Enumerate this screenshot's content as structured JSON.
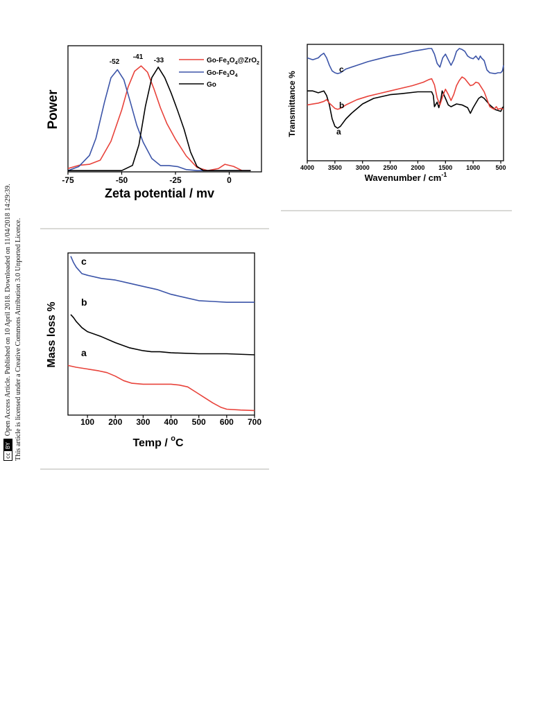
{
  "sidebar": {
    "line1": "Open Access Article. Published on 10 April 2018. Downloaded on 11/04/2018 14:29:39.",
    "line2": "This article is licensed under a Creative Commons Attribution 3.0 Unported Licence.",
    "badge_cc": "cc",
    "badge_by": "BY"
  },
  "colors": {
    "red": "#e8423a",
    "blue": "#3b54a8",
    "black": "#000000"
  },
  "chart_data": [
    {
      "type": "line",
      "xlabel": "Zeta potential / mv",
      "ylabel": "Power",
      "xlim": [
        -75,
        15
      ],
      "xticks": [
        -75,
        -50,
        -25,
        0
      ],
      "tick_labels": [
        "-75",
        "-50",
        "-25",
        "0"
      ],
      "legend_placement": "top-right",
      "peak_labels": [
        "-52",
        "-41",
        "-33"
      ],
      "series": [
        {
          "name": "Go-Fe3O4@ZrO2",
          "legend_text": "Go-Fe",
          "legend_sub1": "3",
          "legend_mid": "O",
          "legend_sub2": "4",
          "legend_mid2": "@ZrO",
          "legend_sub3": "2",
          "color": "#e8423a",
          "peak": -41,
          "x": [
            -75,
            -70,
            -65,
            -60,
            -55,
            -50,
            -47,
            -44,
            -41,
            -38,
            -35,
            -32,
            -29,
            -25,
            -20,
            -15,
            -10,
            -5,
            -2,
            2,
            6,
            10
          ],
          "y": [
            0.02,
            0.05,
            0.06,
            0.1,
            0.28,
            0.58,
            0.8,
            0.95,
            1.0,
            0.94,
            0.78,
            0.6,
            0.45,
            0.3,
            0.14,
            0.03,
            0.0,
            0.02,
            0.06,
            0.04,
            0.0,
            0.0
          ]
        },
        {
          "name": "Go-Fe3O4",
          "legend_text": "Go-Fe",
          "legend_sub1": "3",
          "legend_mid": "O",
          "legend_sub2": "4",
          "color": "#3b54a8",
          "peak": -52,
          "x": [
            -75,
            -70,
            -65,
            -62,
            -58,
            -55,
            -52,
            -49,
            -46,
            -43,
            -40,
            -36,
            -32,
            -28,
            -24,
            -20,
            -15,
            0,
            10
          ],
          "y": [
            0.0,
            0.04,
            0.15,
            0.32,
            0.68,
            0.92,
            1.0,
            0.9,
            0.68,
            0.45,
            0.28,
            0.12,
            0.05,
            0.05,
            0.04,
            0.01,
            0.0,
            0.0,
            0.0
          ]
        },
        {
          "name": "Go",
          "legend_text": "Go",
          "color": "#000000",
          "peak": -33,
          "x": [
            -75,
            -50,
            -45,
            -42,
            -39,
            -36,
            -33,
            -30,
            -27,
            -24,
            -21,
            -18,
            -15,
            -12,
            -8,
            0,
            10
          ],
          "y": [
            0.0,
            0.0,
            0.05,
            0.25,
            0.62,
            0.9,
            1.0,
            0.9,
            0.75,
            0.58,
            0.4,
            0.18,
            0.04,
            0.0,
            0.0,
            0.0,
            0.0
          ]
        }
      ]
    },
    {
      "type": "line",
      "xlabel_main": "Wavenumber / cm",
      "xlabel_sup": "-1",
      "ylabel": "Transmittance %",
      "xlim": [
        4000,
        450
      ],
      "xticks": [
        4000,
        3500,
        3000,
        2500,
        2000,
        1500,
        1000,
        500
      ],
      "tick_labels": [
        "4000",
        "3500",
        "3000",
        "2500",
        "2000",
        "1500",
        "1000",
        "500"
      ],
      "series": [
        {
          "name": "a",
          "color": "#000000",
          "x": [
            4000,
            3900,
            3800,
            3700,
            3650,
            3600,
            3550,
            3500,
            3450,
            3400,
            3300,
            3200,
            3000,
            2800,
            2500,
            2300,
            2000,
            1750,
            1720,
            1700,
            1650,
            1620,
            1580,
            1560,
            1500,
            1450,
            1400,
            1300,
            1200,
            1100,
            1050,
            1000,
            900,
            850,
            800,
            700,
            600,
            500,
            470,
            450
          ],
          "y": [
            0.9,
            0.9,
            0.88,
            0.9,
            0.85,
            0.75,
            0.6,
            0.52,
            0.5,
            0.52,
            0.6,
            0.66,
            0.76,
            0.82,
            0.86,
            0.87,
            0.89,
            0.89,
            0.85,
            0.73,
            0.78,
            0.72,
            0.82,
            0.9,
            0.82,
            0.75,
            0.73,
            0.76,
            0.75,
            0.72,
            0.66,
            0.72,
            0.82,
            0.84,
            0.82,
            0.75,
            0.7,
            0.68,
            0.72,
            0.73
          ]
        },
        {
          "name": "b",
          "color": "#e8423a",
          "x": [
            4000,
            3900,
            3800,
            3700,
            3650,
            3600,
            3500,
            3450,
            3400,
            3300,
            3100,
            2900,
            2700,
            2500,
            2300,
            2100,
            1900,
            1800,
            1750,
            1700,
            1650,
            1600,
            1550,
            1500,
            1450,
            1400,
            1350,
            1300,
            1250,
            1200,
            1150,
            1100,
            1050,
            1000,
            950,
            900,
            850,
            800,
            700,
            620,
            580,
            550,
            500,
            450
          ],
          "y": [
            0.6,
            0.61,
            0.62,
            0.64,
            0.66,
            0.62,
            0.56,
            0.55,
            0.56,
            0.6,
            0.66,
            0.7,
            0.73,
            0.76,
            0.79,
            0.82,
            0.86,
            0.89,
            0.9,
            0.83,
            0.68,
            0.6,
            0.7,
            0.78,
            0.72,
            0.65,
            0.72,
            0.82,
            0.88,
            0.92,
            0.9,
            0.86,
            0.82,
            0.83,
            0.86,
            0.85,
            0.8,
            0.75,
            0.58,
            0.55,
            0.58,
            0.55,
            0.56,
            0.55
          ]
        },
        {
          "name": "c",
          "color": "#3b54a8",
          "x": [
            4000,
            3900,
            3800,
            3750,
            3700,
            3650,
            3600,
            3550,
            3500,
            3450,
            3400,
            3300,
            3100,
            2900,
            2700,
            2500,
            2300,
            2100,
            1900,
            1800,
            1750,
            1700,
            1650,
            1600,
            1550,
            1500,
            1450,
            1400,
            1350,
            1300,
            1250,
            1200,
            1150,
            1100,
            1050,
            1000,
            950,
            900,
            870,
            850,
            800,
            750,
            700,
            600,
            550,
            500,
            470,
            450
          ],
          "y": [
            0.88,
            0.86,
            0.88,
            0.91,
            0.93,
            0.88,
            0.8,
            0.74,
            0.72,
            0.71,
            0.72,
            0.76,
            0.8,
            0.84,
            0.87,
            0.9,
            0.92,
            0.95,
            0.97,
            0.98,
            0.98,
            0.92,
            0.82,
            0.78,
            0.88,
            0.92,
            0.86,
            0.8,
            0.86,
            0.95,
            0.98,
            0.97,
            0.95,
            0.9,
            0.88,
            0.87,
            0.9,
            0.86,
            0.9,
            0.88,
            0.85,
            0.75,
            0.72,
            0.71,
            0.72,
            0.72,
            0.74,
            0.8
          ]
        }
      ]
    },
    {
      "type": "line",
      "xlabel_main": "Temp /  ",
      "xlabel_sup": "o",
      "xlabel_unit": "C",
      "ylabel": "Mass loss %",
      "xlim": [
        30,
        700
      ],
      "xticks": [
        100,
        200,
        300,
        400,
        500,
        600,
        700
      ],
      "tick_labels": [
        "100",
        "200",
        "300",
        "400",
        "500",
        "600",
        "700"
      ],
      "series": [
        {
          "name": "a",
          "color": "#e8423a",
          "x": [
            30,
            60,
            100,
            140,
            170,
            200,
            230,
            260,
            300,
            350,
            400,
            430,
            460,
            490,
            520,
            550,
            580,
            600,
            650,
            700
          ],
          "y": [
            0.52,
            0.5,
            0.48,
            0.46,
            0.44,
            0.4,
            0.35,
            0.32,
            0.31,
            0.31,
            0.31,
            0.3,
            0.28,
            0.22,
            0.16,
            0.1,
            0.05,
            0.03,
            0.02,
            0.015
          ]
        },
        {
          "name": "b",
          "color": "#000000",
          "x": [
            40,
            50,
            60,
            70,
            80,
            100,
            150,
            200,
            250,
            300,
            330,
            360,
            400,
            500,
            600,
            700
          ],
          "y": [
            1.0,
            0.97,
            0.93,
            0.9,
            0.87,
            0.83,
            0.78,
            0.72,
            0.67,
            0.64,
            0.63,
            0.63,
            0.62,
            0.61,
            0.61,
            0.6
          ]
        },
        {
          "name": "c",
          "color": "#3b54a8",
          "x": [
            40,
            50,
            60,
            70,
            80,
            100,
            150,
            200,
            250,
            300,
            350,
            400,
            450,
            500,
            550,
            600,
            650,
            700
          ],
          "y": [
            1.0,
            0.96,
            0.93,
            0.91,
            0.89,
            0.88,
            0.86,
            0.85,
            0.83,
            0.81,
            0.79,
            0.76,
            0.74,
            0.72,
            0.715,
            0.71,
            0.71,
            0.71
          ]
        }
      ]
    }
  ]
}
